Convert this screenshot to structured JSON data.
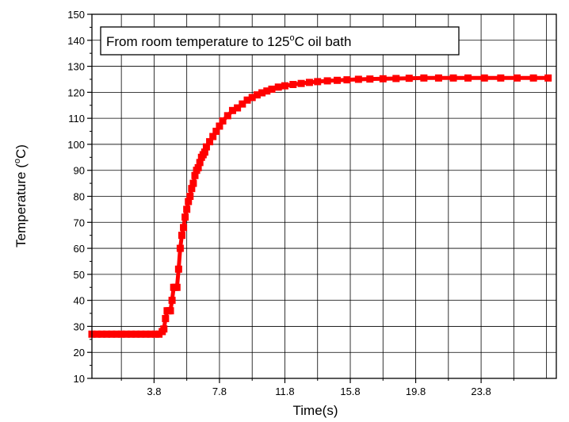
{
  "chart_data": {
    "type": "line",
    "title": "",
    "annotation": {
      "prefix": "From room temperature to 125",
      "degree": "o",
      "suffix": "C oil bath"
    },
    "xlabel": "Time(s)",
    "ylabel": {
      "prefix": "Temperature (",
      "degree": "o",
      "suffix": "C)"
    },
    "xlim": [
      0,
      28.4
    ],
    "ylim": [
      10,
      150
    ],
    "x_ticks": [
      3.8,
      7.8,
      11.8,
      15.8,
      19.8,
      23.8
    ],
    "x_tick_labels": [
      "3.8",
      "7.8",
      "11.8",
      "15.8",
      "19.8",
      "23.8"
    ],
    "y_ticks": [
      10,
      20,
      30,
      40,
      50,
      60,
      70,
      80,
      90,
      100,
      110,
      120,
      130,
      140,
      150
    ],
    "y_tick_labels": [
      "10",
      "20",
      "30",
      "40",
      "50",
      "60",
      "70",
      "80",
      "90",
      "100",
      "110",
      "120",
      "130",
      "140",
      "150"
    ],
    "grid": true,
    "series": [
      {
        "marker": "square",
        "color": "#ff0000",
        "x": [
          0.0,
          0.3,
          0.6,
          0.9,
          1.2,
          1.5,
          1.8,
          2.1,
          2.4,
          2.7,
          3.0,
          3.3,
          3.6,
          3.9,
          4.1,
          4.3,
          4.4,
          4.5,
          4.6,
          4.7,
          4.8,
          4.9,
          5.0,
          5.1,
          5.2,
          5.3,
          5.4,
          5.5,
          5.6,
          5.7,
          5.8,
          5.9,
          6.0,
          6.1,
          6.2,
          6.3,
          6.4,
          6.5,
          6.6,
          6.7,
          6.8,
          6.9,
          7.0,
          7.2,
          7.4,
          7.6,
          7.8,
          8.0,
          8.3,
          8.6,
          8.9,
          9.2,
          9.5,
          9.8,
          10.1,
          10.4,
          10.7,
          11.0,
          11.4,
          11.8,
          12.3,
          12.8,
          13.3,
          13.8,
          14.4,
          15.0,
          15.6,
          16.3,
          17.0,
          17.8,
          18.6,
          19.4,
          20.3,
          21.2,
          22.1,
          23.0,
          24.0,
          25.0,
          26.0,
          27.0,
          27.9
        ],
        "y": [
          27,
          27,
          27,
          27,
          27,
          27,
          27,
          27,
          27,
          27,
          27,
          27,
          27,
          27,
          27,
          28,
          29,
          33,
          36,
          36,
          36,
          40,
          45,
          45,
          45,
          52,
          60,
          65,
          68,
          72,
          75,
          78,
          80,
          83,
          85,
          88,
          90,
          91,
          93,
          95,
          96,
          97,
          99,
          101,
          103,
          105,
          107,
          109,
          111,
          113,
          114,
          115.5,
          117,
          118,
          119,
          119.8,
          120.5,
          121.2,
          122,
          122.5,
          123,
          123.4,
          123.8,
          124.1,
          124.4,
          124.6,
          124.8,
          125,
          125.1,
          125.2,
          125.3,
          125.4,
          125.5,
          125.5,
          125.5,
          125.5,
          125.5,
          125.5,
          125.5,
          125.5,
          125.5
        ]
      }
    ]
  }
}
